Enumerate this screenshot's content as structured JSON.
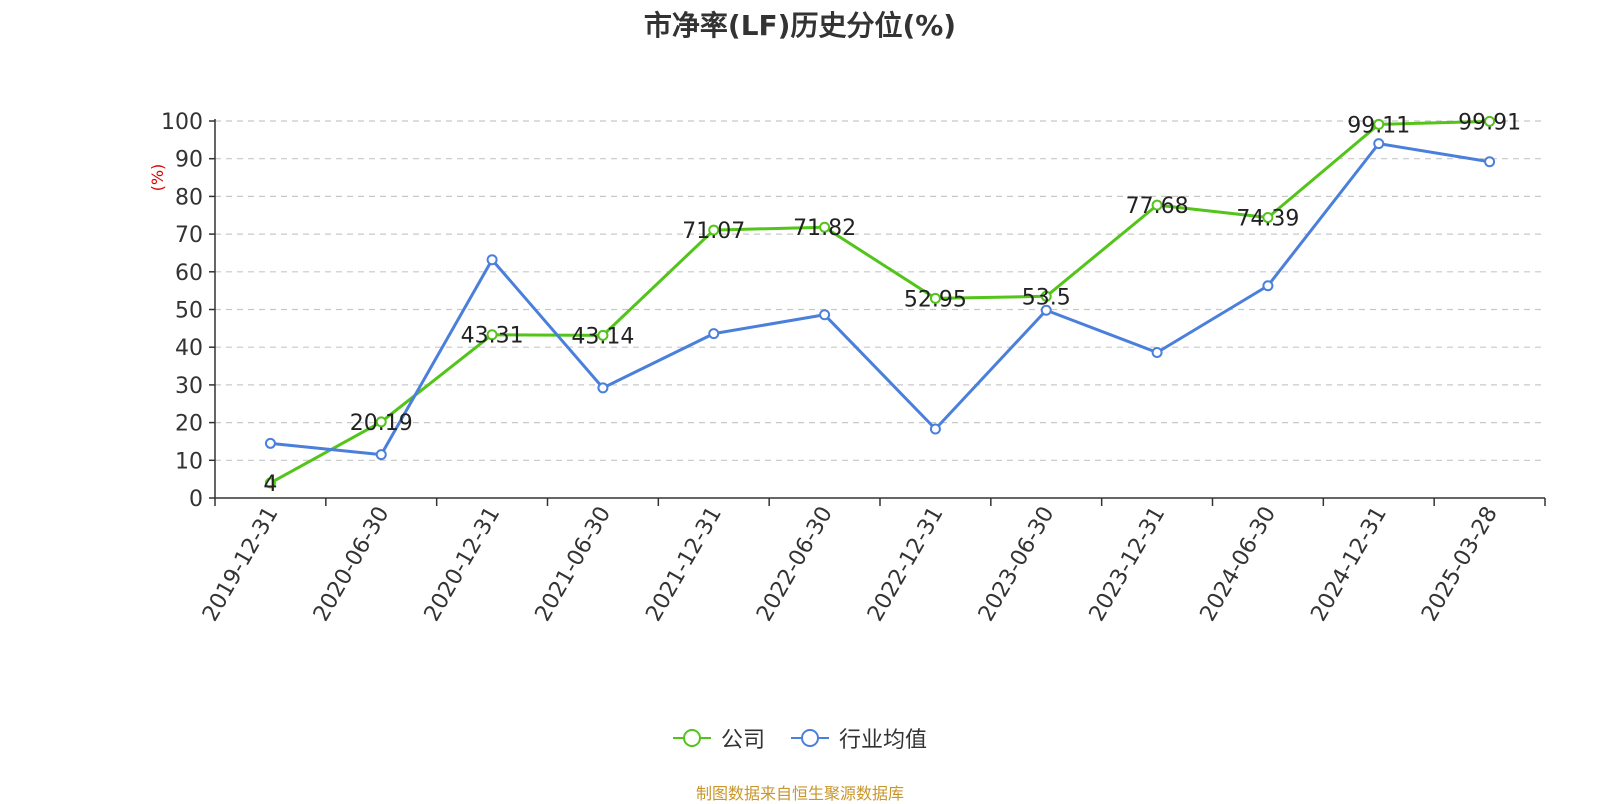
{
  "chart_data": {
    "type": "line",
    "title": "市净率(LF)历史分位(%)",
    "ylabel": "(%)",
    "xlabel": "",
    "ylim": [
      0,
      100
    ],
    "yticks": [
      0,
      10,
      20,
      30,
      40,
      50,
      60,
      70,
      80,
      90,
      100
    ],
    "categories": [
      "2019-12-31",
      "2020-06-30",
      "2020-12-31",
      "2021-06-30",
      "2021-12-31",
      "2022-06-30",
      "2022-12-31",
      "2023-06-30",
      "2023-12-31",
      "2024-06-30",
      "2024-12-31",
      "2025-03-28"
    ],
    "series": [
      {
        "name": "公司",
        "color": "#52c41a",
        "values": [
          4,
          20.19,
          43.31,
          43.14,
          71.07,
          71.82,
          52.95,
          53.5,
          77.68,
          74.39,
          99.11,
          99.91
        ],
        "labels": [
          "4",
          "20.19",
          "43.31",
          "43.14",
          "71.07",
          "71.82",
          "52.95",
          "53.5",
          "77.68",
          "74.39",
          "99.11",
          "99.91"
        ]
      },
      {
        "name": "行业均值",
        "color": "#4a7fdc",
        "values": [
          14.5,
          11.5,
          63.2,
          29.2,
          43.6,
          48.6,
          18.3,
          49.8,
          38.6,
          56.3,
          94.0,
          89.2
        ]
      }
    ],
    "grid": true,
    "legend_position": "bottom"
  },
  "source_text": "制图数据来自恒生聚源数据库",
  "colors": {
    "title": "#333333",
    "ylabel": "#e00000",
    "source": "#c8962b",
    "axis": "#333333",
    "grid": "#c8c8c8"
  }
}
